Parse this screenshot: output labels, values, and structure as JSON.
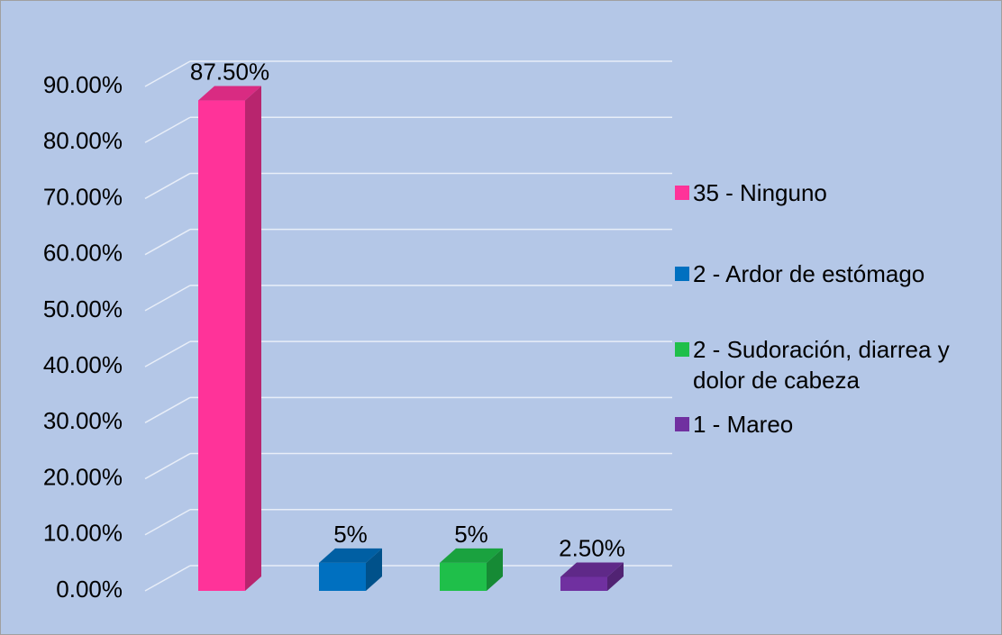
{
  "chart_data": {
    "type": "bar3d",
    "series": [
      {
        "name": "35 - Ninguno",
        "color": "#ff3399",
        "values": [
          87.5
        ],
        "value_labels": [
          "87.50%"
        ]
      },
      {
        "name": "2 - Ardor de estómago",
        "color": "#0070c0",
        "values": [
          5
        ],
        "value_labels": [
          "5%"
        ]
      },
      {
        "name": "2 - Sudoración, diarrea y dolor de cabeza",
        "color": "#1fbf4a",
        "values": [
          5
        ],
        "value_labels": [
          "5%"
        ]
      },
      {
        "name": "1 - Mareo",
        "color": "#7030a0",
        "values": [
          2.5
        ],
        "value_labels": [
          "2.50%"
        ]
      }
    ],
    "ylim": [
      0,
      90
    ],
    "yticks": [
      {
        "value": 0,
        "label": "0.00%"
      },
      {
        "value": 10,
        "label": "10.00%"
      },
      {
        "value": 20,
        "label": "20.00%"
      },
      {
        "value": 30,
        "label": "30.00%"
      },
      {
        "value": 40,
        "label": "40.00%"
      },
      {
        "value": 50,
        "label": "50.00%"
      },
      {
        "value": 60,
        "label": "60.00%"
      },
      {
        "value": 70,
        "label": "70.00%"
      },
      {
        "value": 80,
        "label": "80.00%"
      },
      {
        "value": 90,
        "label": "90.00%"
      }
    ],
    "grid": true,
    "legend": "right"
  }
}
